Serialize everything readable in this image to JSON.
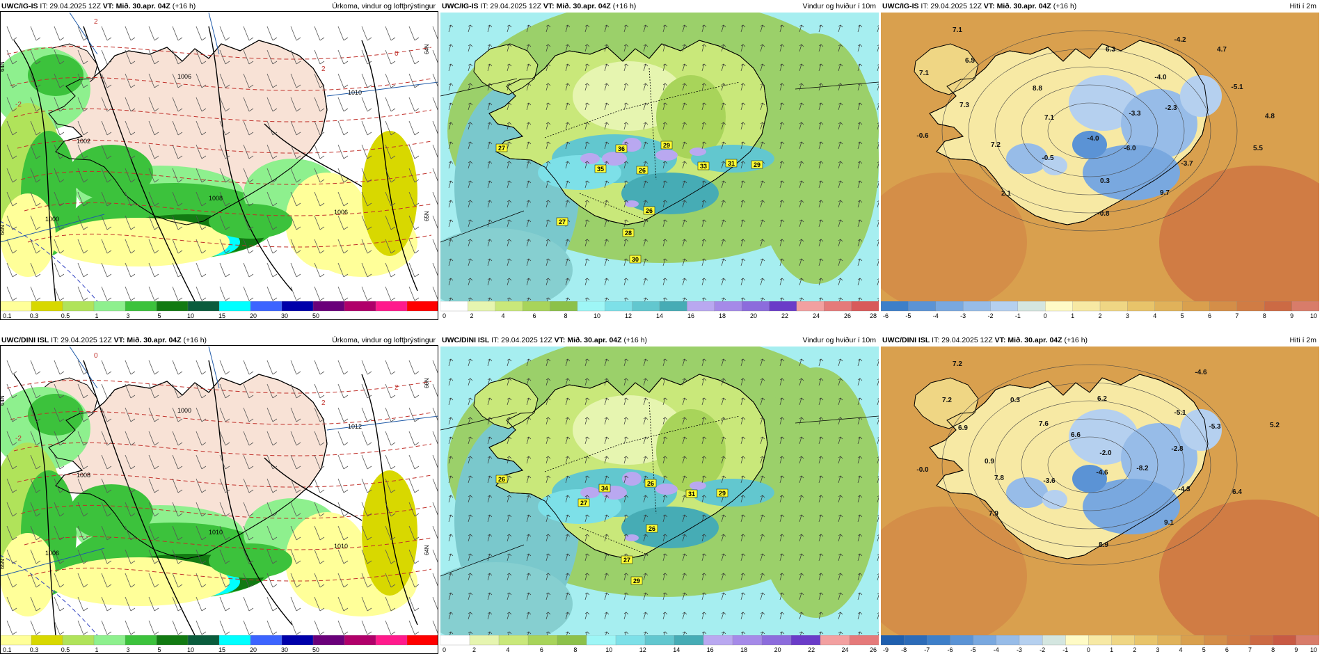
{
  "rows": [
    {
      "model": "UWC/IG-IS",
      "panels": [
        {
          "field": "precip",
          "header": {
            "model": "UWC/IG-IS",
            "it": "IT: 29.04.2025 12Z",
            "vt_label": "VT:",
            "vt": "Mið. 30.apr. 04Z",
            "lead": "(+16 h)",
            "title": "Úrkoma, vindur og loftþrýstingur"
          },
          "scale": {
            "colors": [
              "#ffff99",
              "#d8d800",
              "#b0e35a",
              "#8ef08e",
              "#3cc23c",
              "#127a12",
              "#0a5c3c",
              "#00ffff",
              "#3c64ff",
              "#0000aa",
              "#6a007a",
              "#b0006a",
              "#ff1a8c",
              "#ff0000"
            ],
            "labels": [
              "0.1",
              "0.3",
              "0.5",
              "1",
              "3",
              "5",
              "10",
              "15",
              "20",
              "30",
              "50"
            ]
          },
          "isobar_labels": [
            "1006",
            "1000",
            "1002",
            "1008",
            "1010",
            "1006"
          ],
          "edge_labels": [
            "-2",
            "2",
            "0",
            "2"
          ],
          "gridline_labels": [
            "64N",
            "64N",
            "64N",
            "65N"
          ]
        },
        {
          "field": "wind",
          "header": {
            "model": "UWC/IG-IS",
            "it": "IT: 29.04.2025 12Z",
            "vt_label": "VT:",
            "vt": "Mið. 30.apr. 04Z",
            "lead": "(+16 h)",
            "title": "Vindur og hviður í 10m"
          },
          "scale": {
            "colors": [
              "#ffffff",
              "#e6f5b0",
              "#c9e87a",
              "#a8d45a",
              "#8cc14a",
              "#9ef6f6",
              "#7de0e8",
              "#62c7cf",
              "#46acb5",
              "#b9a8f0",
              "#a58ae8",
              "#8c6cdc",
              "#6a3cc8",
              "#f2a0a0",
              "#e57a7a",
              "#d85a5a"
            ],
            "labels": [
              "0",
              "2",
              "4",
              "6",
              "8",
              "10",
              "12",
              "14",
              "16",
              "18",
              "20",
              "22",
              "24",
              "26",
              "28"
            ]
          },
          "gust_labels": [
            "27",
            "36",
            "29",
            "35",
            "26",
            "33",
            "31",
            "29",
            "26",
            "27",
            "28",
            "30"
          ]
        },
        {
          "field": "temp",
          "header": {
            "model": "UWC/IG-IS",
            "it": "IT: 29.04.2025 12Z",
            "vt_label": "VT:",
            "vt": "Mið. 30.apr. 04Z",
            "lead": "(+16 h)",
            "title": "Hiti í 2m"
          },
          "scale": {
            "colors": [
              "#3d7fc9",
              "#5b93d5",
              "#79a8df",
              "#97bce8",
              "#b5d0ef",
              "#d4e6e0",
              "#fffbc6",
              "#f7e9a4",
              "#efd684",
              "#e8c46a",
              "#e0b25a",
              "#d9a04e",
              "#d48e48",
              "#d07c44",
              "#cc6a44",
              "#d87c6a"
            ],
            "labels": [
              "-6",
              "-5",
              "-4",
              "-3",
              "-2",
              "-1",
              "0",
              "1",
              "2",
              "3",
              "4",
              "5",
              "6",
              "7",
              "8",
              "9",
              "10"
            ]
          },
          "point_values": [
            "7.1",
            "6.5",
            "7.1",
            "8.8",
            "6.3",
            "-4.2",
            "4.7",
            "-4.0",
            "-5.1",
            "7.3",
            "7.1",
            "-3.3",
            "-2.3",
            "4.8",
            "-0.6",
            "7.2",
            "-4.0",
            "-6.0",
            "5.5",
            "-0.5",
            "-3.7",
            "0.3",
            "2.1",
            "9.7",
            "-0.8"
          ]
        }
      ]
    },
    {
      "model": "UWC/DINI ISL",
      "panels": [
        {
          "field": "precip",
          "header": {
            "model": "UWC/DINI ISL",
            "it": "IT: 29.04.2025 12Z",
            "vt_label": "VT:",
            "vt": "Mið. 30.apr. 04Z",
            "lead": "(+16 h)",
            "title": "Úrkoma, vindur og loftþrýstingur"
          },
          "scale": {
            "colors": [
              "#ffff99",
              "#d8d800",
              "#b0e35a",
              "#8ef08e",
              "#3cc23c",
              "#127a12",
              "#0a5c3c",
              "#00ffff",
              "#3c64ff",
              "#0000aa",
              "#6a007a",
              "#b0006a",
              "#ff1a8c",
              "#ff0000"
            ],
            "labels": [
              "0.1",
              "0.3",
              "0.5",
              "1",
              "3",
              "5",
              "10",
              "15",
              "20",
              "30",
              "50"
            ]
          },
          "isobar_labels": [
            "1000",
            "1006",
            "1008",
            "1010",
            "1012",
            "1010"
          ],
          "edge_labels": [
            "-2",
            "0",
            "2",
            "2"
          ],
          "gridline_labels": [
            "64N",
            "65N",
            "66N",
            "64N"
          ]
        },
        {
          "field": "wind",
          "header": {
            "model": "UWC/DINI ISL",
            "it": "IT: 29.04.2025 12Z",
            "vt_label": "VT:",
            "vt": "Mið. 30.apr. 04Z",
            "lead": "(+16 h)",
            "title": "Vindur og hviður í 10m"
          },
          "scale": {
            "colors": [
              "#ffffff",
              "#e6f5b0",
              "#c9e87a",
              "#a8d45a",
              "#8cc14a",
              "#9ef6f6",
              "#7de0e8",
              "#62c7cf",
              "#46acb5",
              "#b9a8f0",
              "#a58ae8",
              "#8c6cdc",
              "#6a3cc8",
              "#f2a0a0",
              "#e57a7a"
            ],
            "labels": [
              "0",
              "2",
              "4",
              "6",
              "8",
              "10",
              "12",
              "14",
              "16",
              "18",
              "20",
              "22",
              "24",
              "26"
            ]
          },
          "gust_labels": [
            "26",
            "34",
            "26",
            "27",
            "31",
            "29",
            "26",
            "27",
            "29"
          ]
        },
        {
          "field": "temp",
          "header": {
            "model": "UWC/DINI ISL",
            "it": "IT: 29.04.2025 12Z",
            "vt_label": "VT:",
            "vt": "Mið. 30.apr. 04Z",
            "lead": "(+16 h)",
            "title": "Hiti í 2m"
          },
          "scale": {
            "colors": [
              "#1f5fae",
              "#2c6bb8",
              "#3d7fc9",
              "#5b93d5",
              "#79a8df",
              "#97bce8",
              "#b5d0ef",
              "#d4e6e0",
              "#fffbc6",
              "#f7e9a4",
              "#efd684",
              "#e8c46a",
              "#e0b25a",
              "#d9a04e",
              "#d48e48",
              "#d07c44",
              "#cc6a44",
              "#c85a44",
              "#d87c6a"
            ],
            "labels": [
              "-9",
              "-8",
              "-7",
              "-6",
              "-5",
              "-4",
              "-3",
              "-2",
              "-1",
              "0",
              "1",
              "2",
              "3",
              "4",
              "5",
              "6",
              "7",
              "8",
              "9",
              "10"
            ]
          },
          "point_values": [
            "7.2",
            "7.2",
            "0.3",
            "-4.6",
            "6.2",
            "6.9",
            "7.6",
            "6.6",
            "-5.1",
            "-5.3",
            "5.2",
            "0.9",
            "-2.0",
            "-2.8",
            "-0.0",
            "7.8",
            "-3.6",
            "-4.6",
            "-8.2",
            "-4.3",
            "6.4",
            "7.9",
            "9.1",
            "8.9"
          ]
        }
      ]
    }
  ]
}
